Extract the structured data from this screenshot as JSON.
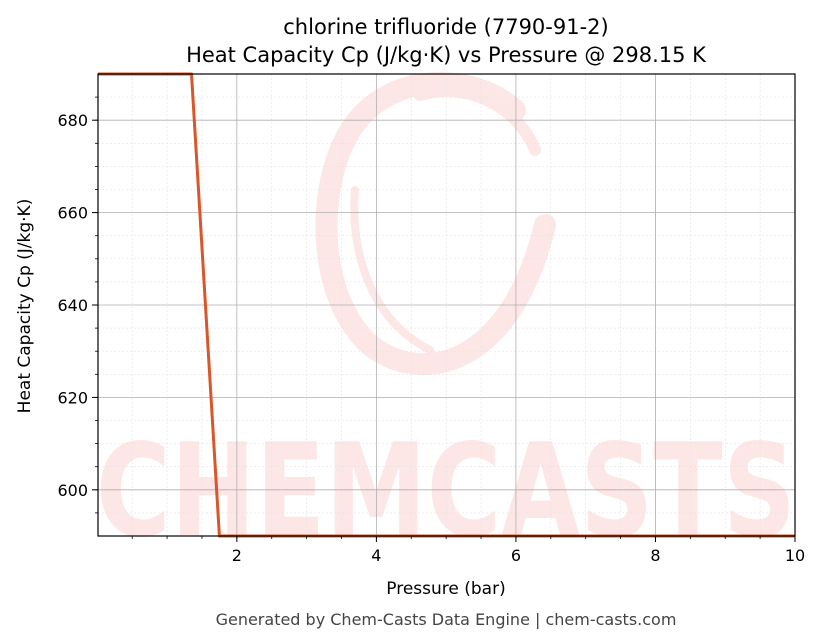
{
  "chart_data": {
    "type": "line",
    "title": "chlorine trifluoride (7790-91-2)",
    "subtitle": "Heat Capacity Cp (J/kg·K) vs Pressure @ 298.15 K",
    "xlabel": "Pressure (bar)",
    "ylabel": "Heat Capacity Cp (J/kg·K)",
    "xlim": [
      0.01,
      10
    ],
    "ylim": [
      590,
      690
    ],
    "x_ticks": [
      2,
      4,
      6,
      8,
      10
    ],
    "y_ticks": [
      600,
      620,
      640,
      660,
      680
    ],
    "grid": true,
    "minor_grid": true,
    "series": [
      {
        "color": "#d9562a",
        "x": [
          0.01,
          1.35,
          1.75,
          10
        ],
        "y": [
          690,
          690,
          590,
          590
        ]
      }
    ]
  },
  "watermark": {
    "text": "CHEMCASTS",
    "color": "#fde6e6"
  },
  "footer": "Generated by Chem-Casts Data Engine | chem-casts.com"
}
